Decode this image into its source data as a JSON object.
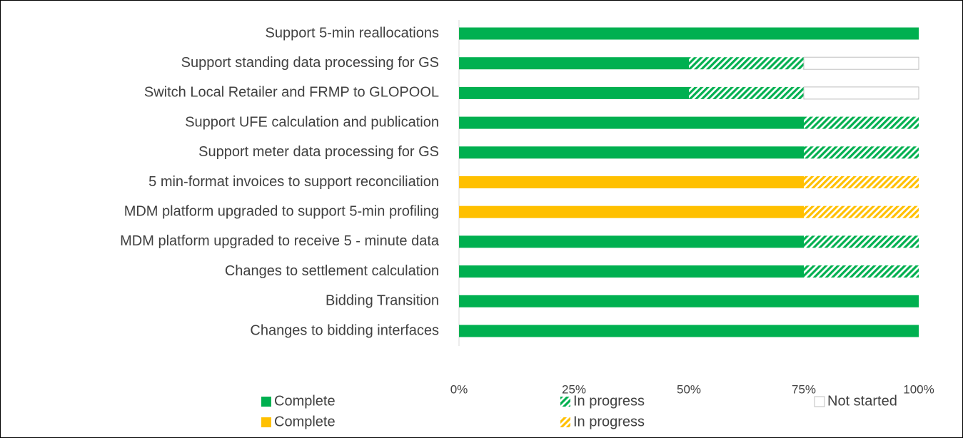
{
  "chart_data": {
    "type": "stacked_bar_horizontal",
    "categories": [
      "Support 5-min reallocations",
      "Support standing data processing for GS",
      "Switch Local Retailer and FRMP to GLOPOOL",
      "Support UFE calculation and publication",
      "Support meter data processing for GS",
      "5 min-format invoices to support reconciliation",
      "MDM platform upgraded to support 5-min profiling",
      "MDM platform upgraded to receive 5 - minute data",
      "Changes to settlement calculation",
      "Bidding Transition",
      "Changes to bidding interfaces"
    ],
    "series": [
      {
        "name": "Complete",
        "color": "#00b050",
        "pattern": "solid",
        "values": [
          100,
          50,
          50,
          75,
          75,
          0,
          0,
          75,
          75,
          100,
          100
        ]
      },
      {
        "name": "In progress",
        "color": "#00b050",
        "pattern": "hatch",
        "values": [
          0,
          25,
          25,
          25,
          25,
          0,
          0,
          25,
          25,
          0,
          0
        ]
      },
      {
        "name": "Not started",
        "color": "#ffffff",
        "pattern": "solid",
        "values": [
          0,
          25,
          25,
          0,
          0,
          0,
          0,
          0,
          0,
          0,
          0
        ]
      },
      {
        "name": "Complete",
        "color": "#ffc000",
        "pattern": "solid",
        "values": [
          0,
          0,
          0,
          0,
          0,
          75,
          75,
          0,
          0,
          0,
          0
        ]
      },
      {
        "name": "In progress",
        "color": "#ffc000",
        "pattern": "hatch",
        "values": [
          0,
          0,
          0,
          0,
          0,
          25,
          25,
          0,
          0,
          0,
          0
        ]
      }
    ],
    "xlim": [
      0,
      100
    ],
    "xticks": [
      {
        "value": 0,
        "label": "0%"
      },
      {
        "value": 25,
        "label": "25%"
      },
      {
        "value": 50,
        "label": "50%"
      },
      {
        "value": 75,
        "label": "75%"
      },
      {
        "value": 100,
        "label": "100%"
      }
    ]
  }
}
